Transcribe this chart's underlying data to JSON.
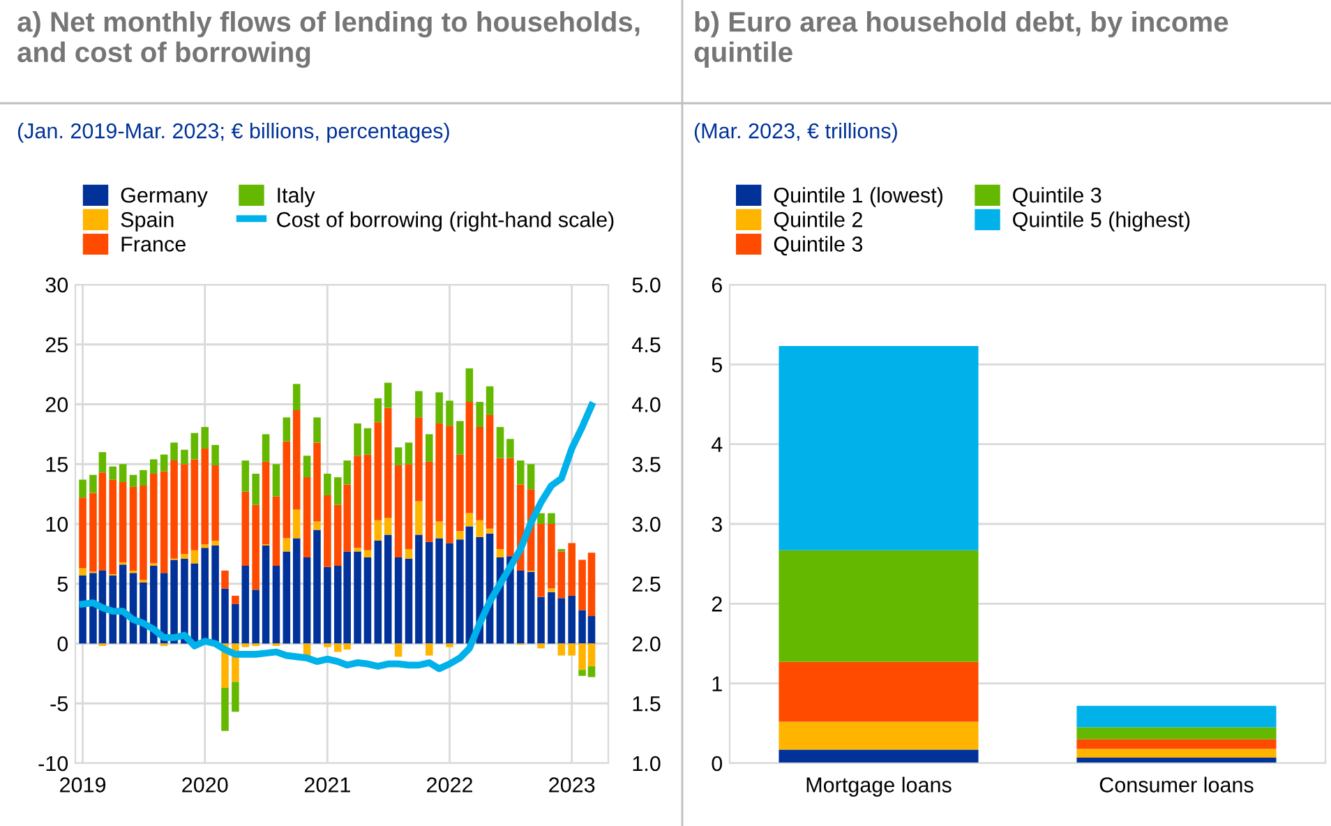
{
  "chart_data": [
    {
      "type": "bar",
      "stacked": true,
      "title": "a) Net monthly flows of lending to households, and cost of borrowing",
      "subtitle": "(Jan. 2019-Mar. 2023; € billions, percentages)",
      "x": [
        "2019-01",
        "2019-02",
        "2019-03",
        "2019-04",
        "2019-05",
        "2019-06",
        "2019-07",
        "2019-08",
        "2019-09",
        "2019-10",
        "2019-11",
        "2019-12",
        "2020-01",
        "2020-02",
        "2020-03",
        "2020-04",
        "2020-05",
        "2020-06",
        "2020-07",
        "2020-08",
        "2020-09",
        "2020-10",
        "2020-11",
        "2020-12",
        "2021-01",
        "2021-02",
        "2021-03",
        "2021-04",
        "2021-05",
        "2021-06",
        "2021-07",
        "2021-08",
        "2021-09",
        "2021-10",
        "2021-11",
        "2021-12",
        "2022-01",
        "2022-02",
        "2022-03",
        "2022-04",
        "2022-05",
        "2022-06",
        "2022-07",
        "2022-08",
        "2022-09",
        "2022-10",
        "2022-11",
        "2022-12",
        "2023-01",
        "2023-02",
        "2023-03"
      ],
      "series": [
        {
          "name": "Germany",
          "color": "#003299",
          "values": [
            5.7,
            5.9,
            6.1,
            5.7,
            6.6,
            5.9,
            5.1,
            6.5,
            5.9,
            7.0,
            7.1,
            6.7,
            8.0,
            8.2,
            4.6,
            3.3,
            6.5,
            4.5,
            8.2,
            6.5,
            7.7,
            8.8,
            7.2,
            9.5,
            6.4,
            6.5,
            7.7,
            7.7,
            7.2,
            8.6,
            9.1,
            7.2,
            7.1,
            9.1,
            8.5,
            8.8,
            8.4,
            8.7,
            9.8,
            8.9,
            9.2,
            7.2,
            7.3,
            6.1,
            6.0,
            3.9,
            4.3,
            3.8,
            4.0,
            2.8,
            2.3
          ]
        },
        {
          "name": "Spain",
          "color": "#ffb400",
          "values": [
            0.6,
            0.1,
            -0.2,
            0.1,
            0.2,
            0.2,
            0.2,
            0.2,
            -0.2,
            0.1,
            0.4,
            1.1,
            0.3,
            0.4,
            -3.7,
            -3.2,
            -0.3,
            -0.2,
            0.1,
            -0.2,
            1.1,
            2.4,
            -1.0,
            0.7,
            -0.3,
            -0.7,
            -0.5,
            0.3,
            0.6,
            1.7,
            1.4,
            -1.1,
            0.8,
            2.8,
            -1.0,
            1.4,
            -0.3,
            0.7,
            1.1,
            1.4,
            0.4,
            0.7,
            null,
            -0.1,
            0.1,
            -0.4,
            0.3,
            -1.0,
            -1.0,
            -2.2,
            -1.9
          ]
        },
        {
          "name": "France",
          "color": "#ff4b00",
          "values": [
            5.9,
            6.6,
            8.2,
            7.9,
            6.7,
            7.0,
            7.9,
            7.5,
            8.5,
            8.2,
            7.5,
            7.6,
            8.0,
            6.3,
            1.5,
            0.7,
            6.2,
            7.1,
            6.9,
            5.8,
            8.1,
            8.3,
            6.7,
            6.6,
            6.0,
            5.1,
            5.6,
            7.7,
            8.0,
            8.2,
            9.2,
            7.7,
            7.1,
            7.0,
            6.7,
            8.2,
            9.8,
            6.4,
            9.3,
            7.8,
            9.5,
            7.6,
            8.2,
            7.2,
            6.8,
            6.1,
            5.4,
            3.9,
            4.4,
            4.2,
            5.3
          ]
        },
        {
          "name": "Italy",
          "color": "#65b800",
          "values": [
            1.5,
            1.5,
            1.7,
            1.1,
            1.5,
            1.0,
            1.3,
            1.2,
            1.4,
            1.5,
            1.2,
            2.2,
            1.8,
            1.7,
            -3.6,
            -2.5,
            2.6,
            2.6,
            2.3,
            2.7,
            2.0,
            2.2,
            1.8,
            2.1,
            1.8,
            2.3,
            2.0,
            2.7,
            2.2,
            2.0,
            2.1,
            1.5,
            1.8,
            2.2,
            2.3,
            2.6,
            2.1,
            2.8,
            2.8,
            2.1,
            2.4,
            2.6,
            1.6,
            2.0,
            2.1,
            0.9,
            0.9,
            0.2,
            0.0,
            -0.5,
            -0.9
          ]
        },
        {
          "name": "Cost of borrowing (right-hand scale)",
          "color": "#00b1ea",
          "type": "line",
          "axis": "y2",
          "values": [
            2.33,
            2.34,
            2.3,
            2.27,
            2.27,
            2.2,
            2.17,
            2.12,
            2.05,
            2.05,
            2.07,
            1.98,
            2.02,
            2.0,
            1.95,
            1.91,
            1.91,
            1.91,
            1.92,
            1.93,
            1.9,
            1.89,
            1.88,
            1.85,
            1.87,
            1.85,
            1.82,
            1.84,
            1.83,
            1.81,
            1.83,
            1.83,
            1.82,
            1.82,
            1.84,
            1.79,
            1.83,
            1.88,
            1.96,
            2.17,
            2.35,
            2.5,
            2.64,
            2.79,
            3.01,
            3.18,
            3.32,
            3.38,
            3.63,
            3.81,
            3.99
          ]
        }
      ],
      "xlim": [
        "2018-12-10",
        "2023-04-20"
      ],
      "xticks": [
        {
          "value": "2019-01",
          "label": "2019"
        },
        {
          "value": "2020-01",
          "label": "2020"
        },
        {
          "value": "2021-01",
          "label": "2021"
        },
        {
          "value": "2022-01",
          "label": "2022"
        },
        {
          "value": "2023-01",
          "label": "2023"
        }
      ],
      "ylim": [
        -10,
        30
      ],
      "yticks": [
        -10,
        -5,
        0,
        5,
        10,
        15,
        20,
        25,
        30
      ],
      "y2lim": [
        1.0,
        5.0
      ],
      "y2ticks": [
        {
          "value": 1,
          "label": "1.0"
        },
        {
          "value": 1.5,
          "label": "1.5"
        },
        {
          "value": 2,
          "label": "2.0"
        },
        {
          "value": 2.5,
          "label": "2.5"
        },
        {
          "value": 3,
          "label": "3.0"
        },
        {
          "value": 3.5,
          "label": "3.5"
        },
        {
          "value": 4,
          "label": "4.0"
        },
        {
          "value": 4.5,
          "label": "4.5"
        },
        {
          "value": 5,
          "label": "5.0"
        }
      ],
      "grid": true,
      "legend": "top left"
    },
    {
      "type": "bar",
      "stacked": true,
      "title": "b) Euro area household debt, by income quintile",
      "subtitle": "(Mar. 2023, € trillions)",
      "categories": [
        "Mortgage loans",
        "Consumer loans"
      ],
      "series": [
        {
          "name": "Quintile 1 (lowest)",
          "color": "#003299",
          "values": [
            0.17,
            0.07
          ]
        },
        {
          "name": "Quintile 2",
          "color": "#ffb400",
          "values": [
            0.35,
            0.11
          ]
        },
        {
          "name": "Quintile 3",
          "color": "#ff4b00",
          "values": [
            0.75,
            0.12
          ]
        },
        {
          "name": "Quintile 3",
          "color": "#65b800",
          "values": [
            1.4,
            0.15
          ]
        },
        {
          "name": "Quintile 5 (highest)",
          "color": "#00b1ea",
          "values": [
            2.56,
            0.27
          ]
        }
      ],
      "ylim": [
        0,
        6
      ],
      "yticks": [
        0,
        1,
        2,
        3,
        4,
        5,
        6
      ],
      "grid": "y",
      "legend": "top left"
    }
  ]
}
